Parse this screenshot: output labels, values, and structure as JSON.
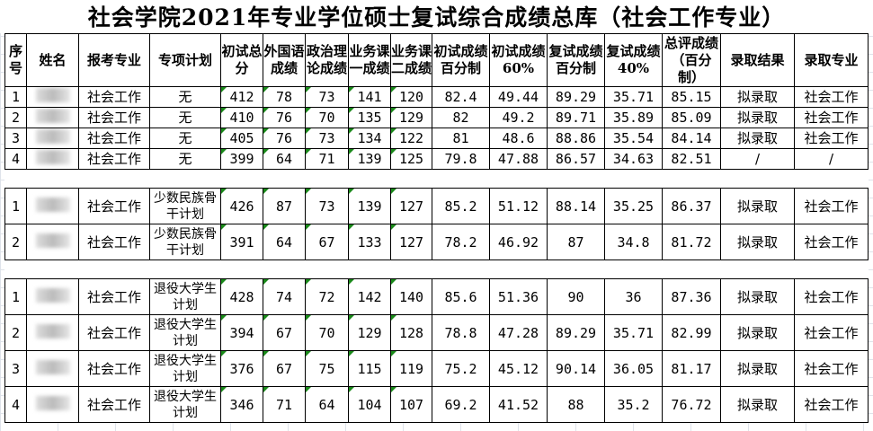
{
  "title": "社会学院2021年专业学位硕士复试综合成绩总库（社会工作专业）",
  "headers": [
    "序号",
    "姓名",
    "报考专业",
    "专项计划",
    "初试总分",
    "外国语成绩",
    "政治理论成绩",
    "业务课一成绩",
    "业务课二成绩",
    "初试成绩百分制",
    "初试成绩60%",
    "复试成绩百分制",
    "复试成绩40%",
    "总评成绩（百分制）",
    "录取结果",
    "录取专业"
  ],
  "groups": [
    {
      "rows": [
        [
          "1",
          "",
          "社会工作",
          "无",
          "412",
          "78",
          "73",
          "141",
          "120",
          "82.4",
          "49.44",
          "89.29",
          "35.71",
          "85.15",
          "拟录取",
          "社会工作"
        ],
        [
          "2",
          "",
          "社会工作",
          "无",
          "410",
          "76",
          "70",
          "135",
          "129",
          "82",
          "49.2",
          "89.71",
          "35.89",
          "85.09",
          "拟录取",
          "社会工作"
        ],
        [
          "3",
          "",
          "社会工作",
          "无",
          "405",
          "76",
          "73",
          "134",
          "122",
          "81",
          "48.6",
          "88.86",
          "35.54",
          "84.14",
          "拟录取",
          "社会工作"
        ],
        [
          "4",
          "",
          "社会工作",
          "无",
          "399",
          "64",
          "71",
          "139",
          "125",
          "79.8",
          "47.88",
          "86.57",
          "34.63",
          "82.51",
          "/",
          "/"
        ]
      ]
    },
    {
      "rows": [
        [
          "1",
          "",
          "社会工作",
          "少数民族骨干计划",
          "426",
          "87",
          "73",
          "139",
          "127",
          "85.2",
          "51.12",
          "88.14",
          "35.25",
          "86.37",
          "拟录取",
          "社会工作"
        ],
        [
          "2",
          "",
          "社会工作",
          "少数民族骨干计划",
          "391",
          "64",
          "67",
          "133",
          "127",
          "78.2",
          "46.92",
          "87",
          "34.8",
          "81.72",
          "拟录取",
          "社会工作"
        ]
      ]
    },
    {
      "rows": [
        [
          "1",
          "",
          "社会工作",
          "退役大学生计划",
          "428",
          "74",
          "72",
          "142",
          "140",
          "85.6",
          "51.36",
          "90",
          "36",
          "87.36",
          "拟录取",
          "社会工作"
        ],
        [
          "2",
          "",
          "社会工作",
          "退役大学生计划",
          "394",
          "67",
          "70",
          "129",
          "128",
          "78.8",
          "47.28",
          "89.29",
          "35.71",
          "82.99",
          "拟录取",
          "社会工作"
        ],
        [
          "3",
          "",
          "社会工作",
          "退役大学生计划",
          "376",
          "67",
          "75",
          "115",
          "119",
          "75.2",
          "45.12",
          "90.14",
          "36.05",
          "81.17",
          "拟录取",
          "社会工作"
        ],
        [
          "4",
          "",
          "社会工作",
          "退役大学生计划",
          "346",
          "71",
          "64",
          "104",
          "107",
          "69.2",
          "41.52",
          "88",
          "35.2",
          "76.72",
          "拟录取",
          "社会工作"
        ]
      ]
    }
  ]
}
